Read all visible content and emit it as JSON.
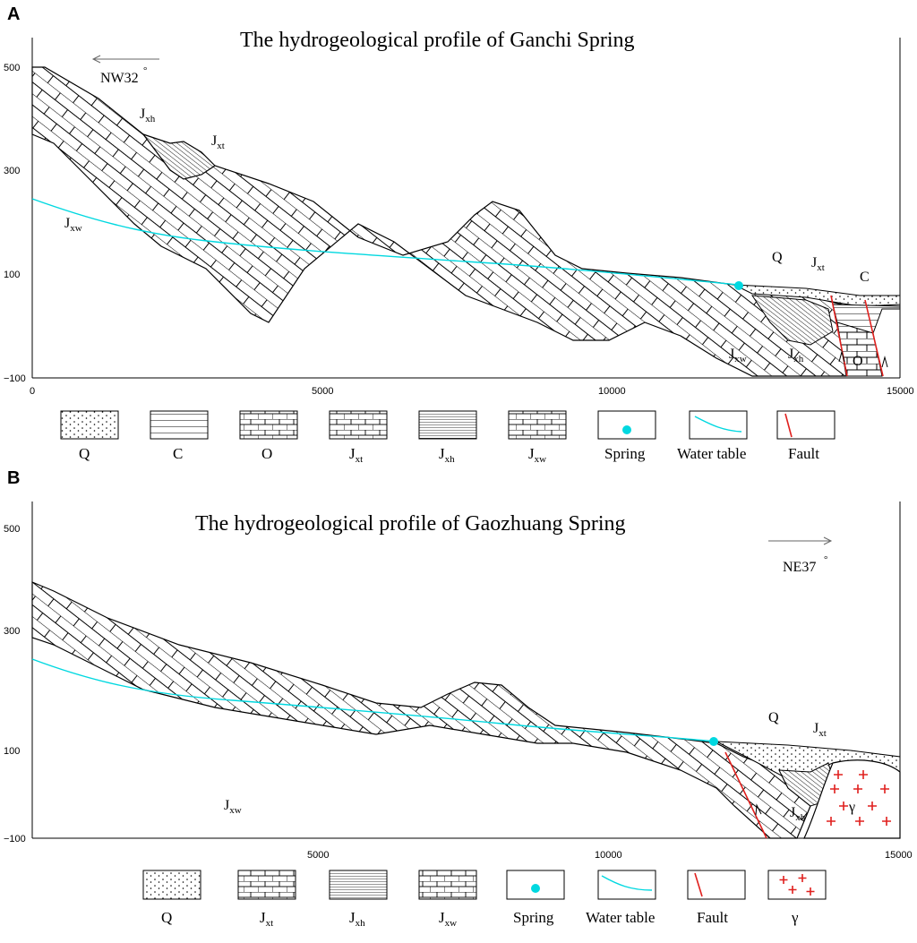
{
  "panels": {
    "A": {
      "letter": "A",
      "title": "The hydrogeological profile of Ganchi Spring",
      "direction": "NW32",
      "degree": "°",
      "y_ticks": [
        "500",
        "300",
        "100",
        "−100"
      ],
      "x_ticks": [
        "0",
        "5000",
        "10000",
        "15000"
      ],
      "labels": {
        "jxh_top": {
          "main": "J",
          "sub": "xh"
        },
        "jxt_top": {
          "main": "J",
          "sub": "xt"
        },
        "jxw_left": {
          "main": "J",
          "sub": "xw"
        },
        "q": "Q",
        "jxt_right": {
          "main": "J",
          "sub": "xt"
        },
        "c": "C",
        "jxw_bottom": {
          "main": "J",
          "sub": "xw"
        },
        "jxh_bottom": {
          "main": "J",
          "sub": "xh"
        },
        "o": "O"
      },
      "legend": [
        {
          "key": "Q"
        },
        {
          "key": "C"
        },
        {
          "key": "O"
        },
        {
          "key": "J",
          "sub": "xt"
        },
        {
          "key": "J",
          "sub": "xh"
        },
        {
          "key": "J",
          "sub": "xw"
        },
        {
          "key": "Spring"
        },
        {
          "key": "Water table"
        },
        {
          "key": "Fault"
        }
      ]
    },
    "B": {
      "letter": "B",
      "title": "The hydrogeological profile of Gaozhuang Spring",
      "direction": "NE37",
      "degree": "°",
      "y_ticks": [
        "500",
        "300",
        "100",
        "−100"
      ],
      "x_ticks": [
        "5000",
        "10000",
        "15000"
      ],
      "labels": {
        "q": "Q",
        "jxt": {
          "main": "J",
          "sub": "xt"
        },
        "gamma": "γ",
        "jxh": {
          "main": "J",
          "sub": "xh"
        },
        "jxw": {
          "main": "J",
          "sub": "xw"
        }
      },
      "legend": [
        {
          "key": "Q"
        },
        {
          "key": "J",
          "sub": "xt"
        },
        {
          "key": "J",
          "sub": "xh"
        },
        {
          "key": "J",
          "sub": "xw"
        },
        {
          "key": "Spring"
        },
        {
          "key": "Water table"
        },
        {
          "key": "Fault"
        },
        {
          "key": "γ"
        }
      ]
    }
  },
  "colors": {
    "water_table": "#00d8e0",
    "spring": "#00d8e0",
    "fault": "#e0201e",
    "granite": "#e0201e"
  }
}
